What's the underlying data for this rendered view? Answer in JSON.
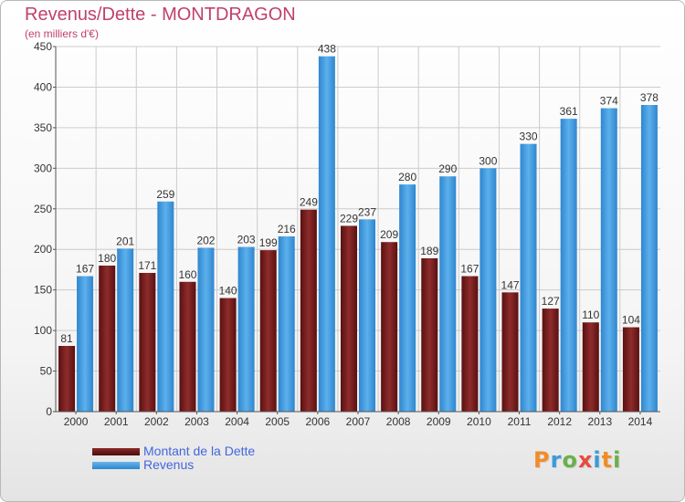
{
  "title": "Revenus/Dette - MONTDRAGON",
  "subtitle": "(en milliers d'€)",
  "logo": {
    "text": "Proxiti",
    "letter_colors": [
      "#f28c28",
      "#3a9ad9",
      "#6ab04c",
      "#e74c3c",
      "#3a9ad9",
      "#f28c28",
      "#6ab04c"
    ]
  },
  "colors": {
    "dette": "#7a1e1e",
    "revenus": "#3d9ae0",
    "title": "#c0416a",
    "legend_text": "#4466dd"
  },
  "chart_data": {
    "type": "bar",
    "categories": [
      "2000",
      "2001",
      "2002",
      "2003",
      "2004",
      "2005",
      "2006",
      "2007",
      "2008",
      "2009",
      "2010",
      "2011",
      "2012",
      "2013",
      "2014"
    ],
    "series": [
      {
        "name": "Montant de la Dette",
        "values": [
          81,
          180,
          171,
          160,
          140,
          199,
          249,
          229,
          209,
          189,
          167,
          147,
          127,
          110,
          104
        ]
      },
      {
        "name": "Revenus",
        "values": [
          167,
          201,
          259,
          202,
          203,
          216,
          438,
          237,
          280,
          290,
          300,
          330,
          361,
          374,
          378
        ]
      }
    ],
    "ylim": [
      0,
      450
    ],
    "yticks": [
      0,
      50,
      100,
      150,
      200,
      250,
      300,
      350,
      400,
      450
    ],
    "grid": true,
    "legend": "bottom-left"
  }
}
